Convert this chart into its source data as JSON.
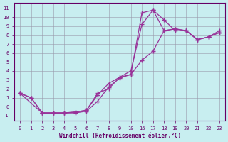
{
  "xlabel": "Windchill (Refroidissement éolien,°C)",
  "bg_color": "#c8eef0",
  "grid_color": "#9999aa",
  "line_color": "#993399",
  "tick_color": "#660066",
  "x_labels": [
    "0",
    "1",
    "2",
    "3",
    "4",
    "5",
    "6",
    "7",
    "8",
    "9",
    "10",
    "16",
    "17",
    "18",
    "19",
    "20",
    "21",
    "22",
    "23"
  ],
  "ylim": [
    -1.6,
    11.6
  ],
  "yticks": [
    -1,
    0,
    1,
    2,
    3,
    4,
    5,
    6,
    7,
    8,
    9,
    10,
    11
  ],
  "lines": [
    {
      "xi": [
        0,
        1,
        2,
        3,
        4,
        5,
        6,
        7,
        8,
        9,
        10,
        11,
        12,
        13,
        14,
        15,
        16,
        17,
        18
      ],
      "y": [
        1.5,
        1.0,
        -0.7,
        -0.7,
        -0.7,
        -0.7,
        -0.5,
        0.6,
        2.2,
        3.2,
        3.6,
        10.5,
        10.8,
        9.7,
        8.5,
        8.5,
        7.5,
        7.8,
        8.5
      ]
    },
    {
      "xi": [
        0,
        1,
        2,
        3,
        4,
        5,
        6,
        7,
        8,
        9,
        10,
        11,
        12,
        13,
        14,
        15,
        16,
        17,
        18
      ],
      "y": [
        1.5,
        1.0,
        -0.7,
        -0.7,
        -0.7,
        -0.6,
        -0.4,
        1.3,
        2.6,
        3.3,
        4.0,
        9.2,
        10.8,
        8.5,
        8.7,
        8.5,
        7.5,
        7.8,
        8.3
      ]
    },
    {
      "xi": [
        0,
        2,
        3,
        4,
        5,
        6,
        7,
        8,
        9,
        10,
        11,
        12,
        13,
        14,
        15,
        16,
        17,
        18
      ],
      "y": [
        1.5,
        -0.7,
        -0.7,
        -0.7,
        -0.6,
        -0.4,
        1.5,
        2.0,
        3.3,
        3.6,
        5.2,
        6.2,
        8.5,
        8.7,
        8.5,
        7.5,
        7.8,
        8.3
      ]
    }
  ]
}
